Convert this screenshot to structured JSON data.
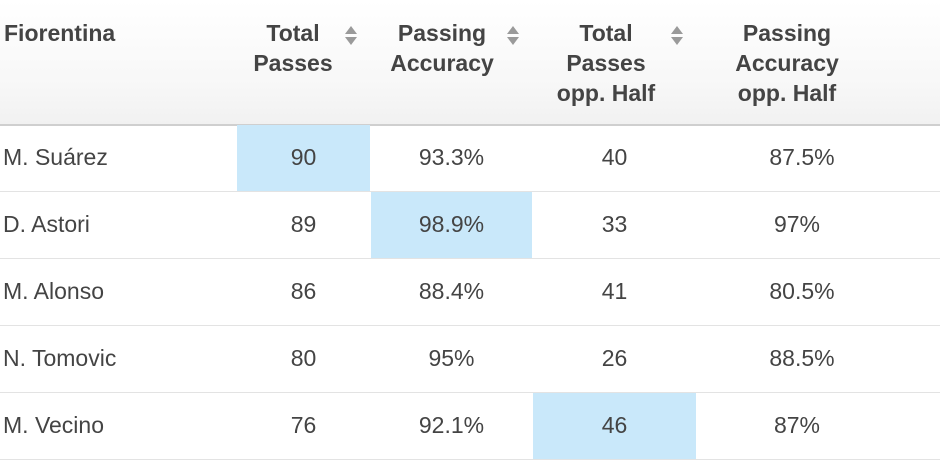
{
  "table": {
    "headers": {
      "team": "Fiorentina",
      "col1_line1": "Total",
      "col1_line2": "Passes",
      "col2_line1": "Passing",
      "col2_line2": "Accuracy",
      "col3_line1": "Total",
      "col3_line2": "Passes",
      "col3_line3": "opp. Half",
      "col4_line1": "Passing",
      "col4_line2": "Accuracy",
      "col4_line3": "opp. Half"
    },
    "sort_icon": "sort-icon",
    "highlight_color": "#c9e8fa",
    "rows": [
      {
        "name": "M. Suárez",
        "c1": "90",
        "c2": "93.3%",
        "c3": "40",
        "c4": "87.5%"
      },
      {
        "name": "D. Astori",
        "c1": "89",
        "c2": "98.9%",
        "c3": "33",
        "c4": "97%"
      },
      {
        "name": "M. Alonso",
        "c1": "86",
        "c2": "88.4%",
        "c3": "41",
        "c4": "80.5%"
      },
      {
        "name": "N. Tomovic",
        "c1": "80",
        "c2": "95%",
        "c3": "26",
        "c4": "88.5%"
      },
      {
        "name": "M. Vecino",
        "c1": "76",
        "c2": "92.1%",
        "c3": "46",
        "c4": "87%"
      }
    ]
  }
}
